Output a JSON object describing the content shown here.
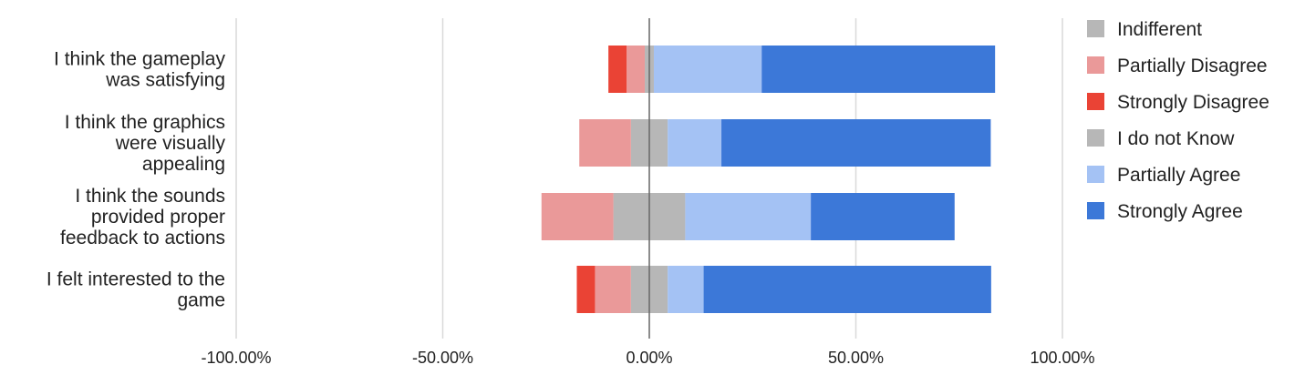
{
  "chart_data": {
    "type": "bar",
    "orientation": "horizontal",
    "stacked": "diverging",
    "categories": [
      [
        "I think the gameplay",
        "was satisfying"
      ],
      [
        "I think the graphics",
        "were visually",
        "appealing"
      ],
      [
        "I think the sounds",
        "provided proper",
        "feedback to actions"
      ],
      [
        "I felt interested to the",
        "game"
      ]
    ],
    "series": [
      {
        "name": "Indifferent",
        "color": "#b7b7b7",
        "values": [
          2.2,
          0,
          0,
          0
        ]
      },
      {
        "name": "Partially Disagree",
        "color": "#ea9999",
        "values": [
          4.4,
          12.5,
          17.4,
          8.7
        ]
      },
      {
        "name": "Strongly Disagree",
        "color": "#ea4335",
        "values": [
          4.4,
          0,
          0,
          4.4
        ]
      },
      {
        "name": "I do not Know",
        "color": "#b7b7b7",
        "values": [
          0,
          8.9,
          17.4,
          8.9
        ]
      },
      {
        "name": "Partially Agree",
        "color": "#a4c2f4",
        "values": [
          26.1,
          13.0,
          30.4,
          8.7
        ]
      },
      {
        "name": "Strongly Agree",
        "color": "#3c78d8",
        "values": [
          56.5,
          65.2,
          34.8,
          69.6
        ]
      }
    ],
    "x_ticks": [
      "-100.00%",
      "-50.00%",
      "0.00%",
      "50.00%",
      "100.00%"
    ],
    "xlim": [
      -100,
      100
    ],
    "grid": true,
    "legend": "right"
  }
}
